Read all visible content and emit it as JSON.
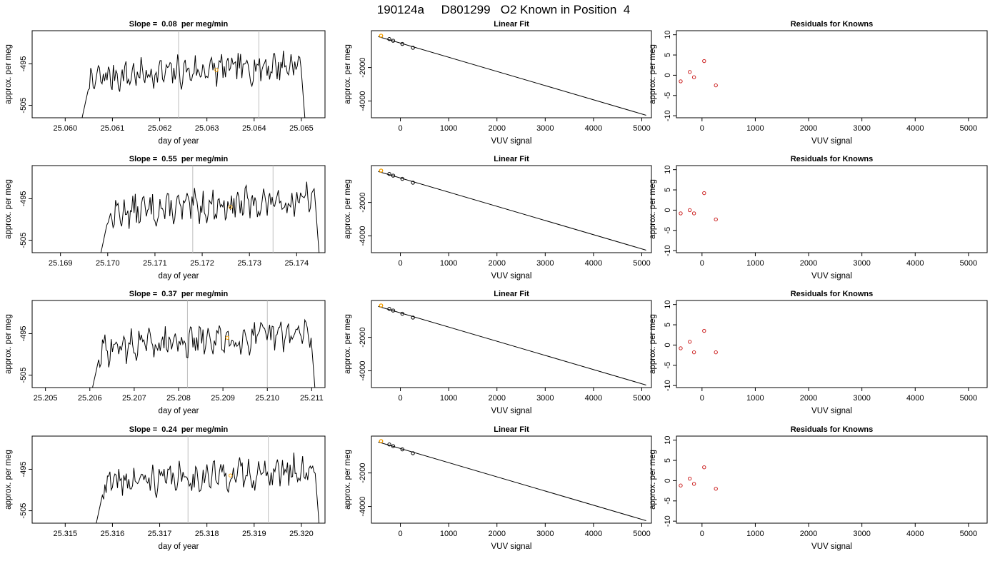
{
  "page_title": "190124a     D801299   O2 Known in Position  4",
  "colors": {
    "trace": "#000000",
    "marker": "#ffa500",
    "residual": "#cd2626",
    "vline": "#bebebe",
    "fit": "#000000"
  },
  "chart_data": [
    {
      "type": "line",
      "title": "Slope =  0.08  per meg/min",
      "xlabel": "day of year",
      "ylabel": "approx. per meg",
      "xlim": [
        25.0593,
        25.0655
      ],
      "ylim": [
        -508,
        -487
      ],
      "xticks": [
        "25.060",
        "25.061",
        "25.062",
        "25.063",
        "25.064",
        "25.065"
      ],
      "yticks": [
        "-495",
        "-505"
      ],
      "vlines": [
        25.0624,
        25.0641
      ],
      "seed": 7,
      "trace_start": 25.0603,
      "trace_end": 25.0651,
      "marker": [
        25.0632,
        -496.5
      ]
    },
    {
      "type": "line",
      "title": "Slope =  0.55  per meg/min",
      "xlabel": "day of year",
      "ylabel": "approx. per meg",
      "xlim": [
        25.1684,
        25.1746
      ],
      "ylim": [
        -508,
        -487
      ],
      "xticks": [
        "25.169",
        "25.170",
        "25.171",
        "25.172",
        "25.173",
        "25.174"
      ],
      "yticks": [
        "-495",
        "-505"
      ],
      "vlines": [
        25.1718,
        25.1735
      ],
      "seed": 13,
      "trace_start": 25.1698,
      "trace_end": 25.1745,
      "marker": [
        25.1726,
        -497.0
      ]
    },
    {
      "type": "line",
      "title": "Slope =  0.37  per meg/min",
      "xlabel": "day of year",
      "ylabel": "approx. per meg",
      "xlim": [
        25.2047,
        25.2113
      ],
      "ylim": [
        -508,
        -487
      ],
      "xticks": [
        "25.205",
        "25.206",
        "25.207",
        "25.208",
        "25.209",
        "25.210",
        "25.211"
      ],
      "yticks": [
        "-495",
        "-505"
      ],
      "vlines": [
        25.2082,
        25.21
      ],
      "seed": 29,
      "trace_start": 25.206,
      "trace_end": 25.2111,
      "marker": [
        25.2091,
        -496.0
      ]
    },
    {
      "type": "line",
      "title": "Slope =  0.24  per meg/min",
      "xlabel": "day of year",
      "ylabel": "approx. per meg",
      "xlim": [
        25.3143,
        25.3205
      ],
      "ylim": [
        -508,
        -487
      ],
      "xticks": [
        "25.315",
        "25.316",
        "25.317",
        "25.318",
        "25.319",
        "25.320"
      ],
      "yticks": [
        "-495",
        "-505"
      ],
      "vlines": [
        25.3176,
        25.3193
      ],
      "seed": 41,
      "trace_start": 25.3156,
      "trace_end": 25.3204,
      "marker": [
        25.3185,
        -496.5
      ]
    },
    {
      "type": "scatter",
      "title": "Linear Fit",
      "xlabel": "VUV signal",
      "ylabel": "approx. per meg",
      "xlim": [
        -600,
        5200
      ],
      "ylim": [
        -5000,
        200
      ],
      "xticks": [
        0,
        1000,
        2000,
        3000,
        4000,
        5000
      ],
      "yticks": [
        -2000,
        -4000
      ],
      "fit_line": [
        [
          -460,
          -150
        ],
        [
          5090,
          -4850
        ]
      ],
      "points": [
        [
          -400,
          -100
        ],
        [
          -230,
          -300
        ],
        [
          -150,
          -400
        ],
        [
          40,
          -590
        ],
        [
          260,
          -820
        ]
      ],
      "highlight": [
        -400,
        -100
      ]
    },
    {
      "type": "scatter",
      "title": "Linear Fit",
      "xlabel": "VUV signal",
      "ylabel": "approx. per meg",
      "xlim": [
        -600,
        5200
      ],
      "ylim": [
        -5000,
        200
      ],
      "xticks": [
        0,
        1000,
        2000,
        3000,
        4000,
        5000
      ],
      "yticks": [
        -2000,
        -4000
      ],
      "fit_line": [
        [
          -460,
          -150
        ],
        [
          5090,
          -4850
        ]
      ],
      "points": [
        [
          -400,
          -100
        ],
        [
          -230,
          -300
        ],
        [
          -150,
          -400
        ],
        [
          40,
          -590
        ],
        [
          260,
          -820
        ]
      ],
      "highlight": [
        -400,
        -100
      ]
    },
    {
      "type": "scatter",
      "title": "Linear Fit",
      "xlabel": "VUV signal",
      "ylabel": "approx. per meg",
      "xlim": [
        -600,
        5200
      ],
      "ylim": [
        -5000,
        200
      ],
      "xticks": [
        0,
        1000,
        2000,
        3000,
        4000,
        5000
      ],
      "yticks": [
        -2000,
        -4000
      ],
      "fit_line": [
        [
          -460,
          -150
        ],
        [
          5090,
          -4850
        ]
      ],
      "points": [
        [
          -400,
          -100
        ],
        [
          -230,
          -300
        ],
        [
          -150,
          -400
        ],
        [
          40,
          -590
        ],
        [
          260,
          -820
        ]
      ],
      "highlight": [
        -400,
        -100
      ]
    },
    {
      "type": "scatter",
      "title": "Linear Fit",
      "xlabel": "VUV signal",
      "ylabel": "approx. per meg",
      "xlim": [
        -600,
        5200
      ],
      "ylim": [
        -5000,
        200
      ],
      "xticks": [
        0,
        1000,
        2000,
        3000,
        4000,
        5000
      ],
      "yticks": [
        -2000,
        -4000
      ],
      "fit_line": [
        [
          -460,
          -150
        ],
        [
          5090,
          -4850
        ]
      ],
      "points": [
        [
          -400,
          -100
        ],
        [
          -230,
          -300
        ],
        [
          -150,
          -400
        ],
        [
          40,
          -590
        ],
        [
          260,
          -820
        ]
      ],
      "highlight": [
        -400,
        -100
      ]
    },
    {
      "type": "scatter",
      "title": "Residuals for Knowns",
      "xlabel": "VUV signal",
      "ylabel": "approx. per meg",
      "xlim": [
        -480,
        5350
      ],
      "ylim": [
        -10.5,
        11
      ],
      "xticks": [
        0,
        1000,
        2000,
        3000,
        4000,
        5000
      ],
      "yticks": [
        10,
        5,
        0,
        -5,
        -10
      ],
      "points": [
        [
          -400,
          -1.5
        ],
        [
          -230,
          0.8
        ],
        [
          -150,
          -0.5
        ],
        [
          40,
          3.5
        ],
        [
          260,
          -2.5
        ]
      ]
    },
    {
      "type": "scatter",
      "title": "Residuals for Knowns",
      "xlabel": "VUV signal",
      "ylabel": "approx. per meg",
      "xlim": [
        -480,
        5350
      ],
      "ylim": [
        -10.5,
        11
      ],
      "xticks": [
        0,
        1000,
        2000,
        3000,
        4000,
        5000
      ],
      "yticks": [
        10,
        5,
        0,
        -5,
        -10
      ],
      "points": [
        [
          -400,
          -0.8
        ],
        [
          -230,
          0.0
        ],
        [
          -150,
          -0.8
        ],
        [
          40,
          4.2
        ],
        [
          260,
          -2.3
        ]
      ]
    },
    {
      "type": "scatter",
      "title": "Residuals for Knowns",
      "xlabel": "VUV signal",
      "ylabel": "approx. per meg",
      "xlim": [
        -480,
        5350
      ],
      "ylim": [
        -10.5,
        11
      ],
      "xticks": [
        0,
        1000,
        2000,
        3000,
        4000,
        5000
      ],
      "yticks": [
        10,
        5,
        0,
        -5,
        -10
      ],
      "points": [
        [
          -400,
          -0.8
        ],
        [
          -230,
          0.8
        ],
        [
          -150,
          -1.8
        ],
        [
          40,
          3.5
        ],
        [
          260,
          -1.8
        ]
      ]
    },
    {
      "type": "scatter",
      "title": "Residuals for Knowns",
      "xlabel": "VUV signal",
      "ylabel": "approx. per meg",
      "xlim": [
        -480,
        5350
      ],
      "ylim": [
        -10.5,
        11
      ],
      "xticks": [
        0,
        1000,
        2000,
        3000,
        4000,
        5000
      ],
      "yticks": [
        10,
        5,
        0,
        -5,
        -10
      ],
      "points": [
        [
          -400,
          -1.2
        ],
        [
          -230,
          0.5
        ],
        [
          -150,
          -0.8
        ],
        [
          40,
          3.3
        ],
        [
          260,
          -2.0
        ]
      ]
    }
  ]
}
